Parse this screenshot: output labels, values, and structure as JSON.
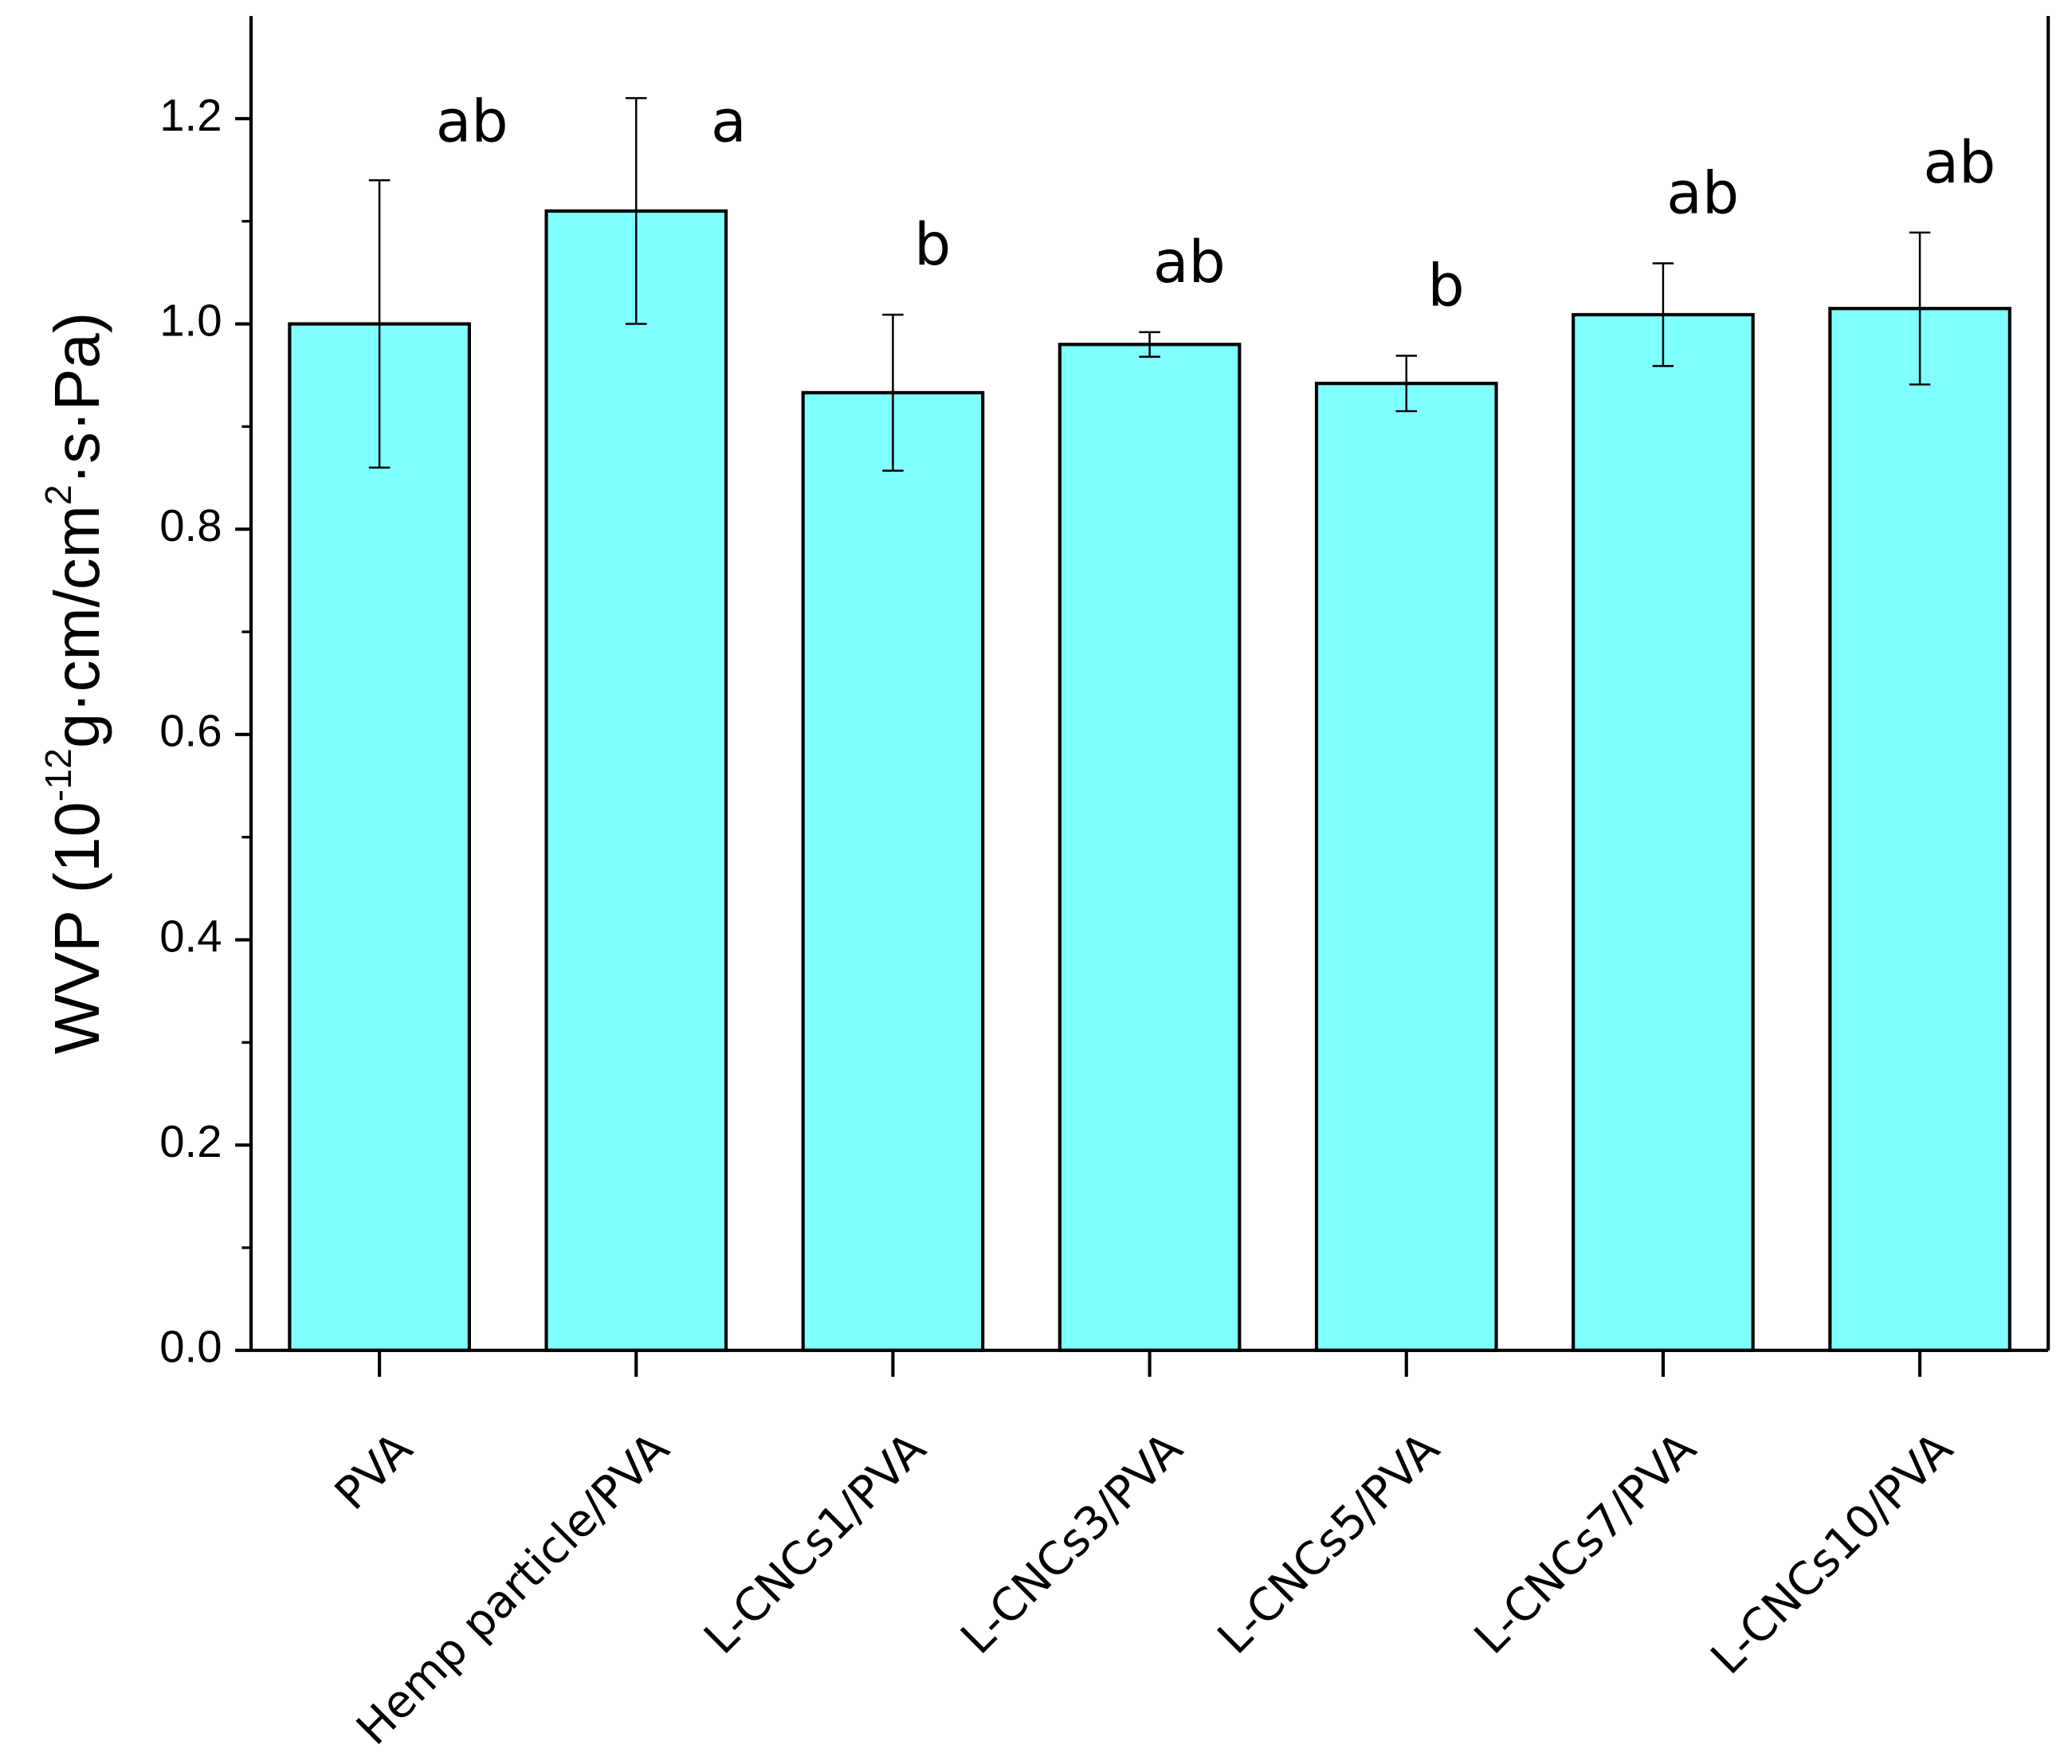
{
  "chart_data": {
    "type": "bar",
    "y_label_parts": [
      {
        "text": "WVP (10"
      },
      {
        "text": "-12",
        "sup": true
      },
      {
        "text": "g·cm/cm"
      },
      {
        "text": "2",
        "sup": true
      },
      {
        "text": "·s·Pa)"
      }
    ],
    "categories": [
      "PVA",
      "Hemp particle/PVA",
      "L-CNCs1/PVA",
      "L-CNCs3/PVA",
      "L-CNCs5/PVA",
      "L-CNCs7/PVA",
      "L-CNCs10/PVA"
    ],
    "values": [
      1.0,
      1.11,
      0.933,
      0.98,
      0.942,
      1.009,
      1.015
    ],
    "errors": [
      0.14,
      0.11,
      0.076,
      0.012,
      0.027,
      0.05,
      0.074
    ],
    "annotations": [
      "ab",
      "a",
      "b",
      "ab",
      "b",
      "ab",
      "ab"
    ],
    "color": "#80ffff",
    "ylim": [
      0,
      1.3
    ],
    "yticks": [
      {
        "value": 0,
        "label": "0.0"
      },
      0.2,
      0.4,
      0.6,
      0.8,
      {
        "value": 1,
        "label": "1.0"
      },
      1.2
    ]
  }
}
